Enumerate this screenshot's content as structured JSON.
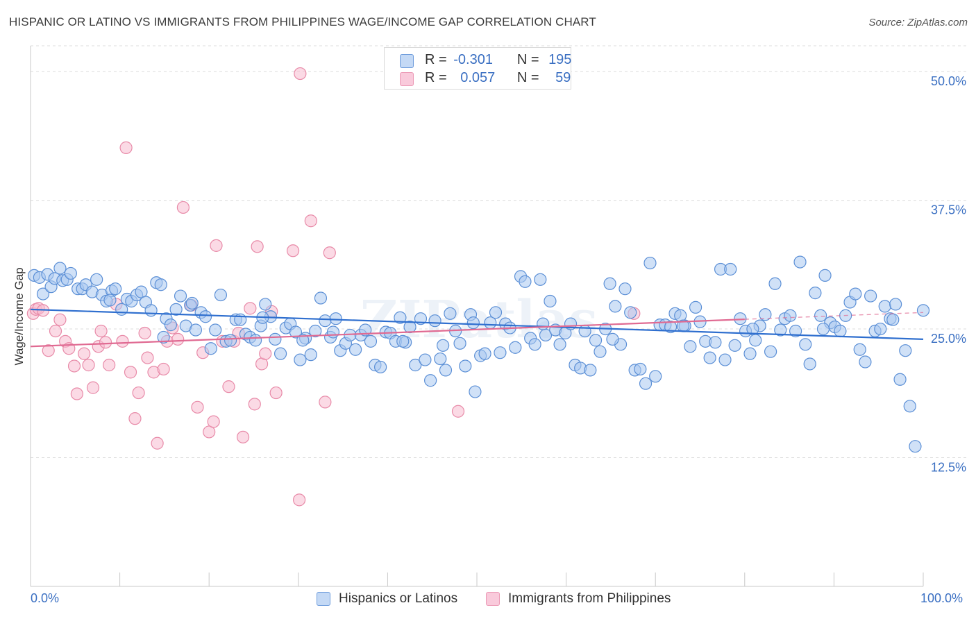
{
  "header": {
    "title": "HISPANIC OR LATINO VS IMMIGRANTS FROM PHILIPPINES WAGE/INCOME GAP CORRELATION CHART",
    "source": "Source: ZipAtlas.com"
  },
  "legend_top": {
    "rows": [
      {
        "r_label": "R =",
        "r_value": "-0.301",
        "n_label": "N =",
        "n_value": "195"
      },
      {
        "r_label": "R =",
        "r_value": "0.057",
        "n_label": "N =",
        "n_value": "59"
      }
    ]
  },
  "legend_bottom": {
    "items": [
      "Hispanics or Latinos",
      "Immigrants from Philippines"
    ]
  },
  "x_axis": {
    "min_label": "0.0%",
    "max_label": "100.0%"
  },
  "watermark": "ZIPatlas",
  "colors": {
    "blue_fill": "#a9c8f0",
    "blue_stroke": "#5b8fd6",
    "blue_line": "#2f6fcf",
    "pink_fill": "#f7bcd0",
    "pink_stroke": "#e88aa8",
    "pink_line": "#e06a92",
    "grid": "#dcdcdc",
    "axis_text": "#3a6fc2"
  },
  "chart_data": {
    "type": "scatter",
    "title": "HISPANIC OR LATINO VS IMMIGRANTS FROM PHILIPPINES WAGE/INCOME GAP CORRELATION CHART",
    "xlabel": "",
    "ylabel": "Wage/Income Gap",
    "xlim": [
      0,
      100
    ],
    "ylim": [
      0,
      52.5
    ],
    "y_ticks": [
      12.5,
      25.0,
      37.5,
      50.0
    ],
    "y_tick_labels": [
      "12.5%",
      "25.0%",
      "37.5%",
      "50.0%"
    ],
    "grid": "horizontal dashed",
    "legend_position": "top-center",
    "series": [
      {
        "name": "Hispanics or Latinos",
        "color": "#a9c8f0",
        "trend": {
          "x": [
            0,
            100
          ],
          "y": [
            26.9,
            24.0
          ],
          "solid_to": 100
        },
        "points": [
          [
            0.4,
            30.2
          ],
          [
            1.0,
            30.0
          ],
          [
            1.4,
            28.4
          ],
          [
            1.9,
            30.3
          ],
          [
            2.3,
            29.1
          ],
          [
            2.7,
            29.9
          ],
          [
            3.3,
            30.9
          ],
          [
            3.6,
            29.7
          ],
          [
            4.1,
            29.8
          ],
          [
            4.5,
            30.4
          ],
          [
            5.3,
            28.9
          ],
          [
            5.8,
            28.9
          ],
          [
            6.2,
            29.3
          ],
          [
            6.9,
            28.6
          ],
          [
            7.4,
            29.8
          ],
          [
            8.0,
            28.3
          ],
          [
            8.5,
            27.7
          ],
          [
            9.1,
            28.7
          ],
          [
            9.5,
            28.9
          ],
          [
            10.2,
            26.9
          ],
          [
            10.8,
            27.9
          ],
          [
            11.3,
            27.7
          ],
          [
            11.9,
            28.3
          ],
          [
            12.4,
            28.6
          ],
          [
            12.9,
            27.6
          ],
          [
            13.5,
            26.8
          ],
          [
            14.1,
            29.5
          ],
          [
            14.6,
            29.3
          ],
          [
            15.2,
            26.0
          ],
          [
            15.7,
            25.4
          ],
          [
            16.3,
            26.9
          ],
          [
            16.8,
            28.2
          ],
          [
            17.4,
            25.3
          ],
          [
            17.9,
            27.3
          ],
          [
            18.5,
            24.9
          ],
          [
            19.1,
            26.6
          ],
          [
            19.6,
            26.2
          ],
          [
            20.2,
            23.1
          ],
          [
            20.7,
            24.9
          ],
          [
            21.3,
            28.3
          ],
          [
            21.9,
            23.8
          ],
          [
            22.4,
            23.9
          ],
          [
            23.0,
            25.9
          ],
          [
            23.5,
            25.9
          ],
          [
            24.1,
            24.5
          ],
          [
            24.6,
            24.2
          ],
          [
            25.2,
            23.9
          ],
          [
            25.8,
            25.3
          ],
          [
            26.3,
            27.4
          ],
          [
            26.9,
            26.2
          ],
          [
            27.4,
            24.0
          ],
          [
            28.0,
            22.6
          ],
          [
            28.6,
            25.1
          ],
          [
            29.1,
            25.5
          ],
          [
            29.7,
            24.7
          ],
          [
            30.2,
            22.0
          ],
          [
            30.8,
            24.1
          ],
          [
            31.4,
            22.5
          ],
          [
            31.9,
            24.8
          ],
          [
            32.5,
            28.0
          ],
          [
            33.0,
            25.8
          ],
          [
            33.6,
            24.2
          ],
          [
            34.2,
            26.0
          ],
          [
            34.7,
            22.9
          ],
          [
            35.3,
            23.6
          ],
          [
            35.8,
            24.4
          ],
          [
            36.4,
            23.0
          ],
          [
            37.0,
            24.4
          ],
          [
            37.5,
            24.9
          ],
          [
            38.1,
            23.8
          ],
          [
            38.6,
            21.5
          ],
          [
            39.2,
            21.3
          ],
          [
            39.8,
            24.7
          ],
          [
            40.3,
            24.6
          ],
          [
            40.9,
            23.8
          ],
          [
            41.4,
            26.1
          ],
          [
            42.0,
            23.7
          ],
          [
            42.5,
            25.2
          ],
          [
            43.1,
            21.5
          ],
          [
            43.7,
            26.0
          ],
          [
            44.2,
            22.0
          ],
          [
            44.8,
            20.0
          ],
          [
            45.3,
            25.8
          ],
          [
            45.9,
            22.1
          ],
          [
            46.5,
            21.0
          ],
          [
            47.0,
            26.5
          ],
          [
            47.6,
            24.8
          ],
          [
            48.1,
            23.6
          ],
          [
            48.7,
            21.4
          ],
          [
            49.3,
            26.4
          ],
          [
            49.8,
            18.9
          ],
          [
            50.4,
            22.4
          ],
          [
            50.9,
            22.6
          ],
          [
            51.5,
            25.6
          ],
          [
            52.1,
            26.6
          ],
          [
            52.6,
            22.7
          ],
          [
            53.2,
            25.5
          ],
          [
            53.7,
            25.1
          ],
          [
            54.3,
            23.2
          ],
          [
            54.9,
            30.1
          ],
          [
            55.4,
            29.6
          ],
          [
            56.0,
            24.1
          ],
          [
            56.5,
            23.5
          ],
          [
            57.1,
            29.8
          ],
          [
            57.7,
            24.4
          ],
          [
            58.2,
            27.7
          ],
          [
            58.8,
            24.9
          ],
          [
            59.3,
            23.5
          ],
          [
            59.9,
            24.6
          ],
          [
            60.5,
            25.5
          ],
          [
            61.0,
            21.5
          ],
          [
            61.6,
            21.2
          ],
          [
            62.1,
            24.8
          ],
          [
            62.7,
            21.0
          ],
          [
            63.3,
            23.9
          ],
          [
            63.8,
            22.8
          ],
          [
            64.4,
            25.0
          ],
          [
            64.9,
            29.4
          ],
          [
            65.5,
            27.2
          ],
          [
            66.1,
            23.5
          ],
          [
            66.6,
            28.9
          ],
          [
            67.2,
            26.6
          ],
          [
            67.7,
            21.0
          ],
          [
            68.3,
            21.1
          ],
          [
            68.9,
            19.7
          ],
          [
            69.4,
            31.4
          ],
          [
            70.0,
            20.4
          ],
          [
            70.5,
            25.4
          ],
          [
            71.1,
            25.4
          ],
          [
            71.7,
            25.2
          ],
          [
            72.2,
            26.5
          ],
          [
            72.8,
            26.3
          ],
          [
            73.3,
            25.3
          ],
          [
            73.9,
            23.3
          ],
          [
            74.5,
            27.1
          ],
          [
            75.0,
            25.7
          ],
          [
            75.6,
            23.8
          ],
          [
            76.1,
            22.2
          ],
          [
            76.7,
            23.7
          ],
          [
            77.3,
            30.8
          ],
          [
            77.8,
            22.0
          ],
          [
            78.4,
            30.8
          ],
          [
            78.9,
            23.4
          ],
          [
            79.5,
            26.0
          ],
          [
            80.1,
            24.8
          ],
          [
            80.6,
            22.6
          ],
          [
            81.2,
            23.9
          ],
          [
            81.7,
            25.3
          ],
          [
            82.3,
            26.4
          ],
          [
            82.9,
            22.8
          ],
          [
            83.4,
            29.4
          ],
          [
            84.0,
            24.9
          ],
          [
            84.5,
            26.0
          ],
          [
            85.1,
            26.3
          ],
          [
            85.7,
            24.8
          ],
          [
            86.2,
            31.5
          ],
          [
            86.8,
            23.5
          ],
          [
            87.3,
            21.6
          ],
          [
            87.9,
            28.5
          ],
          [
            88.5,
            26.3
          ],
          [
            89.0,
            30.2
          ],
          [
            89.6,
            25.6
          ],
          [
            90.1,
            25.2
          ],
          [
            90.7,
            24.8
          ],
          [
            91.3,
            26.3
          ],
          [
            91.8,
            27.6
          ],
          [
            92.4,
            28.4
          ],
          [
            92.9,
            23.0
          ],
          [
            93.5,
            21.8
          ],
          [
            94.1,
            28.2
          ],
          [
            94.6,
            24.8
          ],
          [
            95.2,
            25.0
          ],
          [
            95.7,
            27.2
          ],
          [
            96.3,
            26.0
          ],
          [
            96.9,
            27.4
          ],
          [
            97.4,
            20.1
          ],
          [
            98.0,
            22.9
          ],
          [
            98.5,
            17.5
          ],
          [
            99.1,
            13.6
          ],
          [
            100.0,
            26.8
          ],
          [
            8.9,
            27.8
          ],
          [
            18.1,
            27.5
          ],
          [
            26.0,
            26.1
          ],
          [
            33.9,
            24.7
          ],
          [
            41.7,
            23.8
          ],
          [
            49.6,
            25.6
          ],
          [
            57.4,
            25.5
          ],
          [
            65.2,
            24.0
          ],
          [
            73.1,
            25.3
          ],
          [
            80.9,
            25.0
          ],
          [
            88.8,
            25.0
          ],
          [
            96.6,
            25.9
          ],
          [
            14.9,
            24.2
          ],
          [
            30.5,
            23.9
          ],
          [
            46.2,
            23.4
          ]
        ]
      },
      {
        "name": "Immigrants from Philippines",
        "color": "#f7bcd0",
        "trend": {
          "x": [
            0,
            100
          ],
          "y": [
            23.3,
            26.6
          ],
          "solid_to": 80
        },
        "points": [
          [
            0.3,
            26.5
          ],
          [
            0.6,
            26.9
          ],
          [
            0.9,
            27.0
          ],
          [
            1.4,
            26.8
          ],
          [
            2.0,
            22.9
          ],
          [
            2.8,
            24.8
          ],
          [
            3.3,
            25.9
          ],
          [
            3.9,
            23.8
          ],
          [
            4.3,
            23.1
          ],
          [
            4.9,
            21.4
          ],
          [
            5.2,
            18.7
          ],
          [
            6.0,
            22.6
          ],
          [
            6.5,
            21.5
          ],
          [
            7.0,
            19.3
          ],
          [
            7.6,
            23.3
          ],
          [
            7.9,
            24.8
          ],
          [
            8.4,
            23.7
          ],
          [
            8.8,
            21.5
          ],
          [
            9.6,
            27.4
          ],
          [
            10.3,
            23.8
          ],
          [
            10.7,
            42.6
          ],
          [
            11.2,
            20.8
          ],
          [
            11.7,
            16.3
          ],
          [
            12.1,
            18.8
          ],
          [
            12.8,
            24.6
          ],
          [
            13.1,
            22.2
          ],
          [
            13.8,
            20.8
          ],
          [
            14.2,
            13.9
          ],
          [
            14.9,
            21.1
          ],
          [
            15.3,
            23.8
          ],
          [
            15.9,
            25.1
          ],
          [
            16.5,
            24.0
          ],
          [
            17.1,
            36.8
          ],
          [
            18.0,
            27.3
          ],
          [
            18.7,
            17.4
          ],
          [
            19.3,
            22.7
          ],
          [
            20.0,
            15.0
          ],
          [
            20.5,
            16.0
          ],
          [
            20.8,
            33.1
          ],
          [
            21.5,
            23.8
          ],
          [
            22.2,
            19.4
          ],
          [
            22.8,
            23.8
          ],
          [
            23.3,
            24.6
          ],
          [
            23.8,
            14.5
          ],
          [
            24.6,
            27.0
          ],
          [
            25.1,
            17.7
          ],
          [
            25.4,
            33.0
          ],
          [
            25.9,
            21.6
          ],
          [
            26.3,
            22.6
          ],
          [
            27.0,
            26.7
          ],
          [
            27.5,
            18.8
          ],
          [
            29.4,
            32.6
          ],
          [
            30.1,
            8.4
          ],
          [
            30.2,
            49.8
          ],
          [
            31.4,
            35.5
          ],
          [
            33.0,
            17.9
          ],
          [
            33.5,
            32.4
          ],
          [
            47.9,
            17.0
          ],
          [
            67.6,
            26.5
          ]
        ]
      }
    ]
  }
}
